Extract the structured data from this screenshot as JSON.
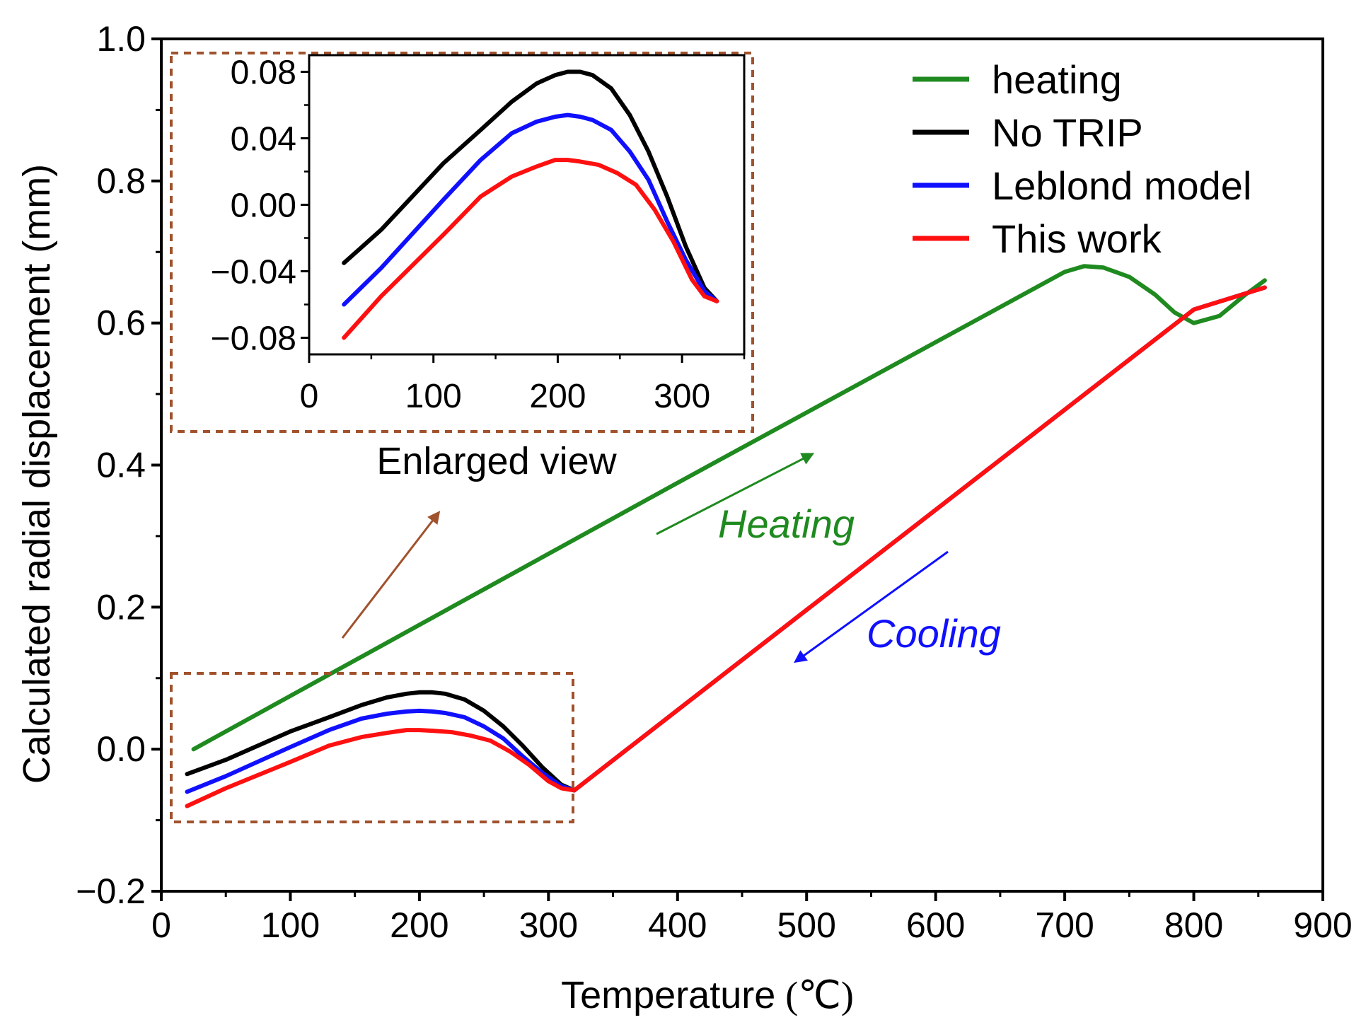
{
  "chart_data": {
    "type": "line",
    "xlabel": "Temperature",
    "xlabel_unit": "(℃)",
    "ylabel": "Calculated radial displacement (mm)",
    "xlim": [
      0,
      900
    ],
    "ylim": [
      -0.2,
      1.0
    ],
    "xticks": [
      0,
      100,
      200,
      300,
      400,
      500,
      600,
      700,
      800,
      900
    ],
    "xtick_labels": [
      "0",
      "100",
      "200",
      "300",
      "400",
      "500",
      "600",
      "700",
      "800",
      "900"
    ],
    "yticks": [
      -0.2,
      0.0,
      0.2,
      0.4,
      0.6,
      0.8,
      1.0
    ],
    "ytick_labels": [
      "−0.2",
      "0.0",
      "0.2",
      "0.4",
      "0.6",
      "0.8",
      "1.0"
    ],
    "legend_position": "top-right",
    "series": [
      {
        "name": "heating",
        "color": "#1f8a1f",
        "x": [
          25,
          100,
          200,
          300,
          400,
          500,
          600,
          700,
          715,
          730,
          750,
          770,
          785,
          800,
          820,
          840,
          855
        ],
        "y": [
          0.0,
          0.075,
          0.175,
          0.275,
          0.375,
          0.474,
          0.573,
          0.672,
          0.68,
          0.678,
          0.665,
          0.64,
          0.615,
          0.6,
          0.61,
          0.64,
          0.66
        ]
      },
      {
        "name": "No TRIP",
        "color": "#000000",
        "x": [
          20,
          50,
          100,
          130,
          155,
          175,
          190,
          200,
          210,
          220,
          235,
          250,
          265,
          280,
          295,
          310,
          320
        ],
        "y": [
          -0.035,
          -0.015,
          0.025,
          0.045,
          0.062,
          0.073,
          0.078,
          0.08,
          0.08,
          0.078,
          0.07,
          0.054,
          0.032,
          0.005,
          -0.025,
          -0.05,
          -0.058
        ]
      },
      {
        "name": "Leblond model",
        "color": "#1010ff",
        "x": [
          20,
          50,
          100,
          130,
          155,
          175,
          190,
          200,
          210,
          220,
          235,
          250,
          265,
          280,
          295,
          310,
          320
        ],
        "y": [
          -0.06,
          -0.038,
          0.003,
          0.027,
          0.043,
          0.05,
          0.053,
          0.054,
          0.053,
          0.051,
          0.045,
          0.032,
          0.015,
          -0.01,
          -0.033,
          -0.052,
          -0.058
        ]
      },
      {
        "name": "This work",
        "color": "#ff1010",
        "x": [
          20,
          50,
          100,
          130,
          155,
          175,
          190,
          200,
          210,
          225,
          240,
          255,
          270,
          285,
          300,
          310,
          320
        ],
        "y": [
          -0.08,
          -0.055,
          -0.018,
          0.005,
          0.017,
          0.023,
          0.027,
          0.027,
          0.026,
          0.024,
          0.019,
          0.012,
          -0.003,
          -0.022,
          -0.045,
          -0.055,
          -0.058
        ]
      },
      {
        "name": "cooling",
        "color": "#ff1010",
        "x": [
          320,
          400,
          500,
          600,
          700,
          800,
          855
        ],
        "y": [
          -0.058,
          0.055,
          0.196,
          0.337,
          0.478,
          0.619,
          0.65
        ]
      }
    ],
    "inset": {
      "title": "Enlarged view",
      "xlim": [
        0,
        350
      ],
      "ylim": [
        -0.09,
        0.09
      ],
      "xticks": [
        0,
        100,
        200,
        300
      ],
      "xtick_labels": [
        "0",
        "100",
        "200",
        "300"
      ],
      "yticks": [
        -0.08,
        -0.04,
        0.0,
        0.04,
        0.08
      ],
      "ytick_labels": [
        "−0.08",
        "−0.04",
        "0.00",
        "0.04",
        "0.08"
      ]
    },
    "annotations": {
      "heating_label": "Heating",
      "cooling_label": "Cooling"
    }
  }
}
